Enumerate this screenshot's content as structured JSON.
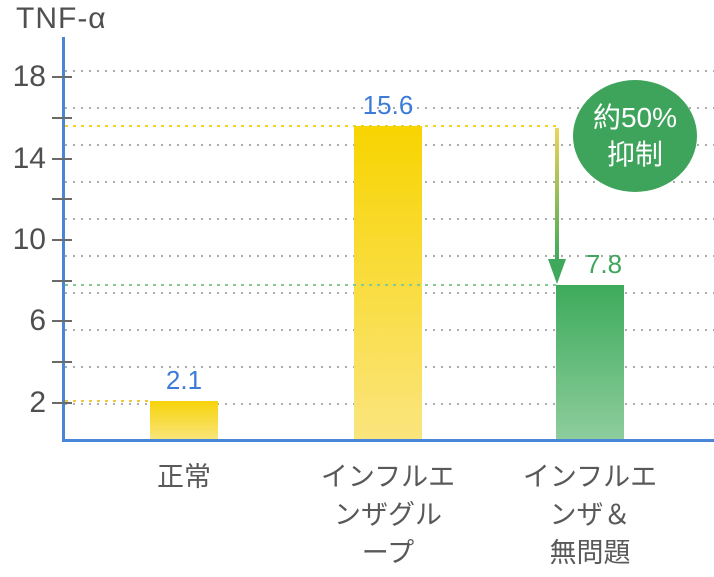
{
  "chart_data": {
    "type": "bar",
    "title": "TNF-α",
    "ylabel": "TNF-α",
    "xlabel": "",
    "categories": [
      "正常",
      "インフルエ\nンザグル\nープ",
      "インフルエ\nンザ＆\n無問題"
    ],
    "values": [
      2.1,
      15.6,
      7.8
    ],
    "value_labels": [
      "2.1",
      "15.6",
      "7.8"
    ],
    "value_label_colors": [
      "#3c7cd8",
      "#3c7cd8",
      "#3fa65c"
    ],
    "bar_gradients": [
      [
        "#f7d30a",
        "#f9e57c"
      ],
      [
        "#f8d400",
        "#fae57e"
      ],
      [
        "#3dab5b",
        "#8ecd9d"
      ]
    ],
    "ylim": [
      0,
      19.8
    ],
    "ytick_values": [
      2,
      4,
      6,
      8,
      10,
      12,
      14,
      16,
      18
    ],
    "ytick_labeled": [
      2,
      6,
      10,
      14,
      18
    ],
    "grid": true,
    "legend": "none",
    "axis_color": "#4a86d8",
    "text_color": "#4f4f4f",
    "reference_lines": [
      {
        "value": 15.6,
        "color": "#f2cf25"
      },
      {
        "value": 7.8,
        "color": "#84c795"
      },
      {
        "value": 2.1,
        "color": "#eec33d"
      }
    ],
    "annotation": {
      "badge": {
        "line1": "約50%",
        "line2": "抑制",
        "color": "#3ea45b",
        "text_color": "#ffffff"
      },
      "arrow": {
        "from_value": 15.6,
        "to_value": 7.8,
        "gradient": [
          "#eed45a",
          "#3fa85c"
        ]
      }
    }
  }
}
